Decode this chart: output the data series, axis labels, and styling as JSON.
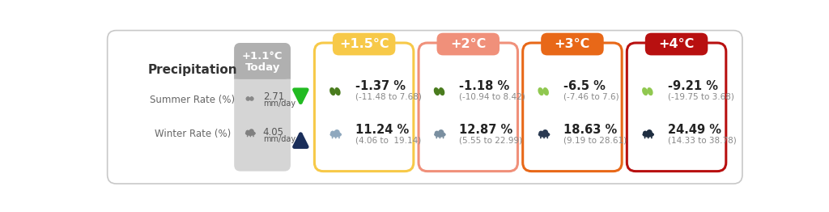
{
  "title_label": "Precipitation",
  "row_labels": [
    "Summer Rate (%)",
    "Winter Rate (%)"
  ],
  "today_temp": "+1.1°C",
  "today_sub": "Today",
  "today_summer_val": "2.71\nmm/day",
  "today_winter_val": "4.05\nmm/day",
  "columns": [
    {
      "temp": "+1.5°C",
      "badge_color": "#f7c948",
      "border_color": "#f7c948",
      "summer_pct": "-1.37 %",
      "summer_range": "(-11.48 to 7.68)",
      "winter_pct": "11.24 %",
      "winter_range": "(4.06 to  19.14)",
      "summer_leaf_color": "#4a7c1e",
      "winter_cloud_color": "#8fa8be"
    },
    {
      "temp": "+2°C",
      "badge_color": "#f0907a",
      "border_color": "#f0907a",
      "summer_pct": "-1.18 %",
      "summer_range": "(-10.94 to 8.42)",
      "winter_pct": "12.87 %",
      "winter_range": "(5.55 to 22.99)",
      "summer_leaf_color": "#4a7c1e",
      "winter_cloud_color": "#7a8fa0"
    },
    {
      "temp": "+3°C",
      "badge_color": "#e86818",
      "border_color": "#e86818",
      "summer_pct": "-6.5 %",
      "summer_range": "(-7.46 to 7.6)",
      "winter_pct": "18.63 %",
      "winter_range": "(9.19 to 28.61)",
      "summer_leaf_color": "#90c850",
      "winter_cloud_color": "#2a3a52"
    },
    {
      "temp": "+4°C",
      "badge_color": "#b81010",
      "border_color": "#b81010",
      "summer_pct": "-9.21 %",
      "summer_range": "(-19.75 to 3.68)",
      "winter_pct": "24.49 %",
      "winter_range": "(14.33 to 38.78)",
      "summer_leaf_color": "#90c850",
      "winter_cloud_color": "#1e2d40"
    }
  ],
  "bg_color": "#ffffff",
  "outer_border_color": "#c8c8c8"
}
